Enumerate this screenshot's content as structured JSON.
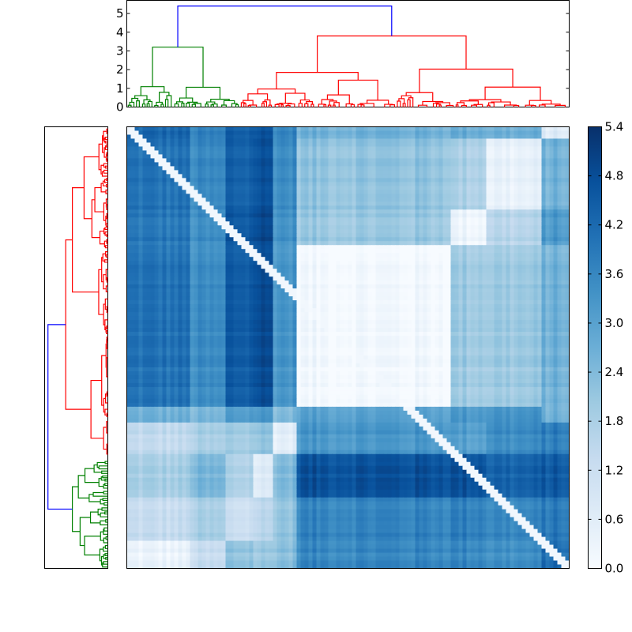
{
  "chart_data": [
    {
      "type": "dendrogram",
      "orientation": "top",
      "ylim": [
        0,
        5.7
      ],
      "yticks": [
        "0",
        "1",
        "2",
        "3",
        "4",
        "5"
      ],
      "ytick_values": [
        0,
        1,
        2,
        3,
        4,
        5
      ],
      "root_height": 5.4,
      "clusters": [
        {
          "color": "#0000ff",
          "merge_height": 5.4
        },
        {
          "color": "#008000",
          "merge_height": 3.2
        },
        {
          "color": "#ff0000",
          "merge_height": 3.8
        }
      ]
    },
    {
      "type": "dendrogram",
      "orientation": "left",
      "root_height": 5.4,
      "clusters": [
        {
          "color": "#0000ff",
          "merge_height": 5.4
        },
        {
          "color": "#ff0000",
          "merge_height": 3.8
        },
        {
          "color": "#008000",
          "merge_height": 3.2
        }
      ]
    },
    {
      "type": "heatmap",
      "colormap": "Blues",
      "vmin": 0.0,
      "vmax": 5.4,
      "note": "pairwise distance matrix, rows/columns reordered by dendrogram leaves",
      "column_blocks": [
        0.14,
        0.22,
        0.29,
        0.33,
        0.38,
        0.73,
        0.81,
        0.94,
        1.0
      ],
      "row_blocks": [
        0.03,
        0.19,
        0.27,
        0.63,
        0.67,
        0.74,
        0.84,
        0.94,
        1.0
      ],
      "block_values": [
        [
          4.2,
          3.6,
          4.4,
          4.6,
          3.6,
          2.6,
          2.7,
          2.6,
          0.6
        ],
        [
          4.0,
          3.5,
          4.4,
          4.7,
          3.5,
          2.2,
          1.8,
          0.4,
          2.6
        ],
        [
          3.9,
          3.4,
          4.6,
          4.9,
          3.4,
          2.1,
          0.3,
          1.6,
          3.2
        ],
        [
          4.0,
          3.4,
          4.5,
          4.8,
          3.3,
          0.1,
          2.0,
          2.0,
          2.6
        ],
        [
          2.6,
          2.4,
          3.1,
          3.2,
          2.4,
          3.0,
          3.2,
          3.3,
          2.6
        ],
        [
          1.4,
          1.8,
          2.0,
          2.2,
          0.6,
          3.3,
          3.1,
          3.5,
          3.8
        ],
        [
          1.8,
          2.4,
          1.7,
          0.6,
          2.4,
          4.7,
          4.7,
          4.3,
          4.5
        ],
        [
          1.3,
          1.8,
          1.2,
          1.5,
          2.2,
          3.7,
          3.8,
          3.6,
          3.9
        ],
        [
          0.3,
          1.2,
          2.2,
          2.0,
          2.3,
          3.6,
          3.6,
          3.4,
          4.1
        ]
      ]
    },
    {
      "type": "colorbar",
      "vmin": 0.0,
      "vmax": 5.4,
      "ticks": [
        "0.0",
        "0.6",
        "1.2",
        "1.8",
        "2.4",
        "3.0",
        "3.6",
        "4.2",
        "4.8",
        "5.4"
      ],
      "tick_values": [
        0.0,
        0.6,
        1.2,
        1.8,
        2.4,
        3.0,
        3.6,
        4.2,
        4.8,
        5.4
      ]
    }
  ]
}
